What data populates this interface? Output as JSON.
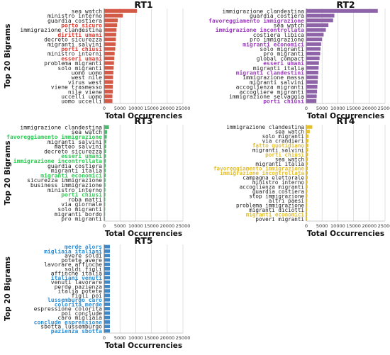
{
  "chart_data": [
    {
      "type": "bar",
      "orientation": "horizontal",
      "title": "RT1",
      "xlabel": "Total Occurrencies",
      "ylabel": "Top 20 Bigrams",
      "xlim": [
        0,
        25000
      ],
      "xticks": [
        "0",
        "5000",
        "10000",
        "15000",
        "20000",
        "25000"
      ],
      "grid": true,
      "bar_color": "#d45a48",
      "highlight_color": "#e03c31",
      "categories": [
        "sea watch",
        "ministro interno",
        "guardia costiera",
        "porto sicuro",
        "immigrazione clandestina",
        "diritti umani",
        "decreto sicurezza",
        "migranti salvini",
        "porti chiusi",
        "ministro interni",
        "esseri umani",
        "problema migranti",
        "solo migranti",
        "uomo uomo",
        "west nile",
        "virus west",
        "viene trasmesso",
        "nile viene",
        "uccelli uomo",
        "uomo uccelli"
      ],
      "values": [
        10400,
        5900,
        4300,
        4100,
        3900,
        3800,
        3700,
        3600,
        3500,
        3300,
        3200,
        3100,
        3000,
        2900,
        2800,
        2800,
        2700,
        2700,
        2600,
        2600
      ],
      "highlighted": [
        "porto sicuro",
        "diritti umani",
        "porti chiusi",
        "esseri umani"
      ]
    },
    {
      "type": "bar",
      "orientation": "horizontal",
      "title": "RT2",
      "xlabel": "Total Occurrencies",
      "ylabel": "",
      "xlim": [
        0,
        25000
      ],
      "xticks": [
        "0",
        "5000",
        "10000",
        "15000",
        "20000",
        "25000"
      ],
      "grid": true,
      "bar_color": "#8e63a8",
      "highlight_color": "#9b3dbb",
      "categories": [
        "immigrazione clandestina",
        "guardia costiera",
        "favoreggiamento immigrazione",
        "sea watch",
        "immigrazione incontrollata",
        "costiera libica",
        "pro immigrazione",
        "migranti economici",
        "solo migranti",
        "pro migranti",
        "global compact",
        "esseri umani",
        "migranti italia",
        "migranti clandestini",
        "immigrazione massa",
        "migranti salvini",
        "accoglienza migranti",
        "accogliere migranti",
        "immigrazione selvaggia",
        "porti chiusi"
      ],
      "values": [
        22700,
        8900,
        8500,
        7000,
        6200,
        5500,
        5000,
        4700,
        4500,
        4400,
        4200,
        4000,
        3900,
        3800,
        3700,
        3600,
        3500,
        3400,
        3300,
        3200
      ],
      "highlighted": [
        "favoreggiamento immigrazione",
        "immigrazione incontrollata",
        "migranti economici",
        "esseri umani",
        "migranti clandestini",
        "porti chiusi"
      ]
    },
    {
      "type": "bar",
      "orientation": "horizontal",
      "title": "RT3",
      "xlabel": "Total Occurrencies",
      "ylabel": "Top 20 Bigrams",
      "xlim": [
        0,
        25000
      ],
      "xticks": [
        "0",
        "5000",
        "10000",
        "15000",
        "20000",
        "25000"
      ],
      "grid": true,
      "bar_color": "#4dba6f",
      "highlight_color": "#2ecc55",
      "categories": [
        "immigrazione clandestina",
        "sea watch",
        "favoreggiamento immigrazione",
        "migranti salvini",
        "matteo salvini",
        "decreto sicurezza",
        "esseri umani",
        "immigrazione incontrollata",
        "guardia costiera",
        "migranti italia",
        "migranti economici",
        "sicurezza immigrazione",
        "business immigrazione",
        "ministro interno",
        "porti chiusi",
        "roba matti",
        "via giornale",
        "solo migranti",
        "migranti bordo",
        "pro migranti"
      ],
      "values": [
        1500,
        900,
        800,
        650,
        600,
        560,
        530,
        500,
        480,
        460,
        440,
        420,
        400,
        380,
        360,
        340,
        320,
        300,
        280,
        260
      ],
      "highlighted": [
        "favoreggiamento immigrazione",
        "esseri umani",
        "immigrazione incontrollata",
        "migranti economici",
        "porti chiusi"
      ]
    },
    {
      "type": "bar",
      "orientation": "horizontal",
      "title": "RT4",
      "xlabel": "Total Occurrencies",
      "ylabel": "",
      "xlim": [
        0,
        25000
      ],
      "xticks": [
        "0",
        "5000",
        "10000",
        "15000",
        "20000",
        "25000"
      ],
      "grid": true,
      "bar_color": "#e6c12e",
      "highlight_color": "#e3bf2b",
      "categories": [
        "immigrazione clandestina",
        "sea watch",
        "solo migranti",
        "via crandieri",
        "fatto quotidiano",
        "migranti salvini",
        "porti chiusi",
        "sea watch",
        "migranti italia",
        "favoreggiamento immigrazione",
        "immigrazione incontrollata",
        "campagna elettorale",
        "ministro interno",
        "accoglienza migranti",
        "guardia costiera",
        "stop immigrazione",
        "altri paesi",
        "problema immigrazione",
        "migranti diciotti",
        "migranti economici",
        "poveri migranti"
      ],
      "values": [
        1900,
        1100,
        700,
        650,
        600,
        560,
        530,
        500,
        480,
        460,
        440,
        420,
        400,
        380,
        360,
        340,
        320,
        300,
        280,
        260,
        240
      ],
      "highlighted": [
        "fatto quotidiano",
        "porti chiusi",
        "favoreggiamento immigrazione",
        "immigrazione incontrollata",
        "migranti economici"
      ]
    },
    {
      "type": "bar",
      "orientation": "horizontal",
      "title": "RT5",
      "xlabel": "Total Occurrencies",
      "ylabel": "Top 20 Bigrams",
      "xlim": [
        0,
        25000
      ],
      "xticks": [
        "0",
        "5000",
        "10000",
        "15000",
        "20000",
        "25000"
      ],
      "grid": true,
      "bar_color": "#3f88c5",
      "highlight_color": "#2d8fd5",
      "categories": [
        "merde alors",
        "migliaia italiani",
        "avere soldi",
        "potete avere",
        "lavorare affinche",
        "soldi figli",
        "affinche italia",
        "italiani venuti",
        "venuti lavorare",
        "perde pazienza",
        "italia potete",
        "figli poi",
        "lussemburgo caro",
        "colorita merde",
        "espressione colorita",
        "poi conclude",
        "caro migliaia",
        "conclude espressione",
        "sbotta lussemburgo",
        "pazienza sbotta"
      ],
      "values": [
        1800,
        1800,
        1800,
        1800,
        1800,
        1800,
        1800,
        1800,
        1800,
        1800,
        1800,
        1800,
        1800,
        1800,
        1800,
        1800,
        1800,
        1800,
        1800,
        1800
      ],
      "highlighted": [
        "merde alors",
        "migliaia italiani",
        "italiani venuti",
        "lussemburgo caro",
        "colorita merde",
        "conclude espressione",
        "pazienza sbotta"
      ]
    }
  ]
}
